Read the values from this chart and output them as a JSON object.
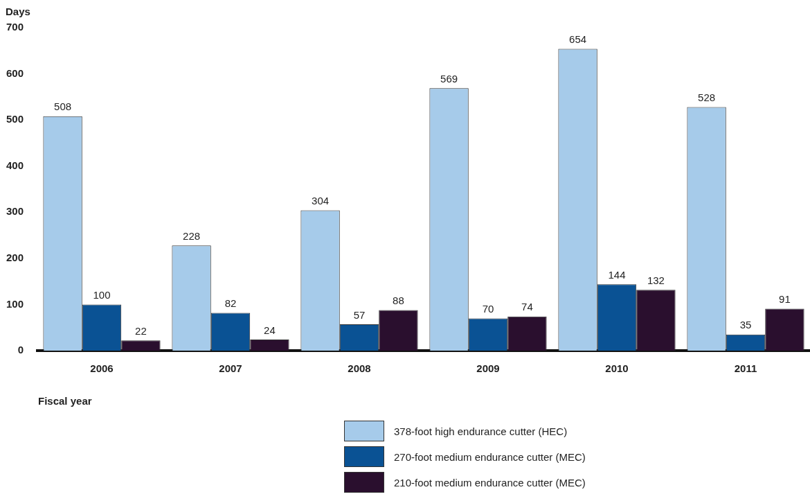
{
  "chart_data": {
    "type": "bar",
    "xlabel": "Fiscal year",
    "ylabel": "Days",
    "categories": [
      "2006",
      "2007",
      "2008",
      "2009",
      "2010",
      "2011"
    ],
    "series": [
      {
        "name": "378-foot high endurance cutter (HEC)",
        "color": "#a6cbea",
        "values": [
          508,
          228,
          304,
          569,
          654,
          528
        ]
      },
      {
        "name": "270-foot medium endurance cutter (MEC)",
        "color": "#0a5294",
        "values": [
          100,
          82,
          57,
          70,
          144,
          35
        ]
      },
      {
        "name": "210-foot medium endurance cutter (MEC)",
        "color": "#2a0f2e",
        "values": [
          22,
          24,
          88,
          74,
          132,
          91
        ]
      }
    ],
    "ylim": [
      0,
      700
    ],
    "yticks": [
      0,
      100,
      200,
      300,
      400,
      500,
      600,
      700
    ],
    "grid": false,
    "legend": "bottom",
    "data_labels": true
  }
}
